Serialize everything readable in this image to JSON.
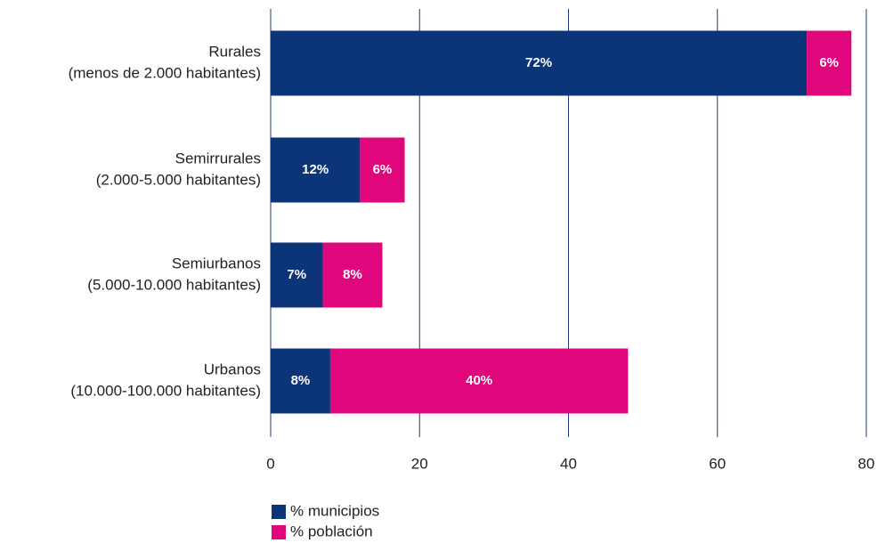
{
  "chart_data": {
    "type": "bar",
    "orientation": "horizontal",
    "stacked": true,
    "categories": [
      [
        "Rurales",
        "(menos de 2.000 habitantes)"
      ],
      [
        "Semirrurales",
        "(2.000-5.000 habitantes)"
      ],
      [
        "Semiurbanos",
        "(5.000-10.000 habitantes)"
      ],
      [
        "Urbanos",
        "(10.000-100.000 habitantes)"
      ]
    ],
    "series": [
      {
        "name": "% municipios",
        "color": "#0c3478",
        "values": [
          72,
          12,
          7,
          8
        ],
        "value_labels": [
          "72%",
          "12%",
          "7%",
          "8%"
        ]
      },
      {
        "name": "% población",
        "color": "#e0077d",
        "values": [
          6,
          6,
          8,
          40
        ],
        "value_labels": [
          "6%",
          "6%",
          "8%",
          "40%"
        ]
      }
    ],
    "xlim": [
      0,
      80
    ],
    "xticks": [
      0,
      20,
      40,
      60,
      80
    ],
    "grid": true,
    "legend": "bottom-left"
  }
}
